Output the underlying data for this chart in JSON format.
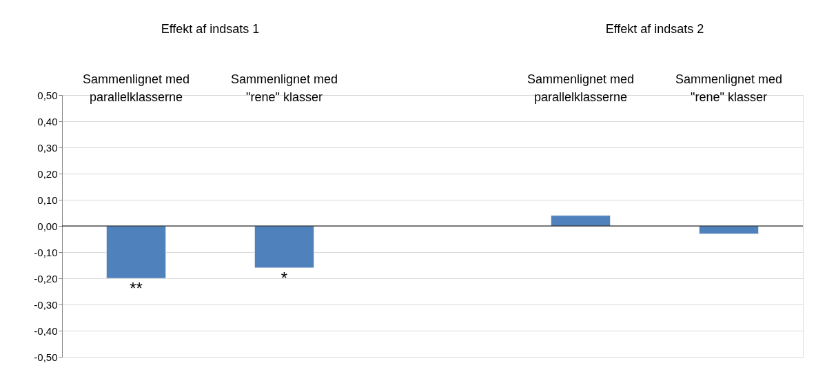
{
  "chart_data": {
    "type": "bar",
    "categories": [
      "Sammenlignet med parallelklasserne",
      "Sammenlignet med \"rene\" klasser",
      null,
      "Sammenlignet med parallelklasserne",
      "Sammenlignet med \"rene\" klasser"
    ],
    "values": [
      -0.2,
      -0.16,
      null,
      0.04,
      -0.03
    ],
    "color": "#4f81bd",
    "ylim": [
      -0.5,
      0.5
    ],
    "yticks": [
      {
        "value": -0.5,
        "label": "-0,50"
      },
      {
        "value": -0.4,
        "label": "-0,40"
      },
      {
        "value": -0.3,
        "label": "-0,30"
      },
      {
        "value": -0.2,
        "label": "-0,20"
      },
      {
        "value": -0.1,
        "label": "-0,10"
      },
      {
        "value": 0,
        "label": "0,00"
      },
      {
        "value": 0.1,
        "label": "0,10"
      },
      {
        "value": 0.2,
        "label": "0,20"
      },
      {
        "value": 0.3,
        "label": "0,30"
      },
      {
        "value": 0.4,
        "label": "0,40"
      },
      {
        "value": 0.5,
        "label": "0,50"
      }
    ],
    "grid": "y",
    "ref_lines": [
      {
        "axis": "y",
        "value": 0,
        "color": "#000000"
      }
    ],
    "annotations": [
      "Effekt af indsats 1",
      "Effekt af indsats 2",
      {
        "text": "**",
        "x": "Sammenlignet med parallelklasserne",
        "y": -0.2
      },
      {
        "text": "*",
        "x": "Sammenlignet med \"rene\" klasser",
        "y": -0.16
      }
    ]
  }
}
